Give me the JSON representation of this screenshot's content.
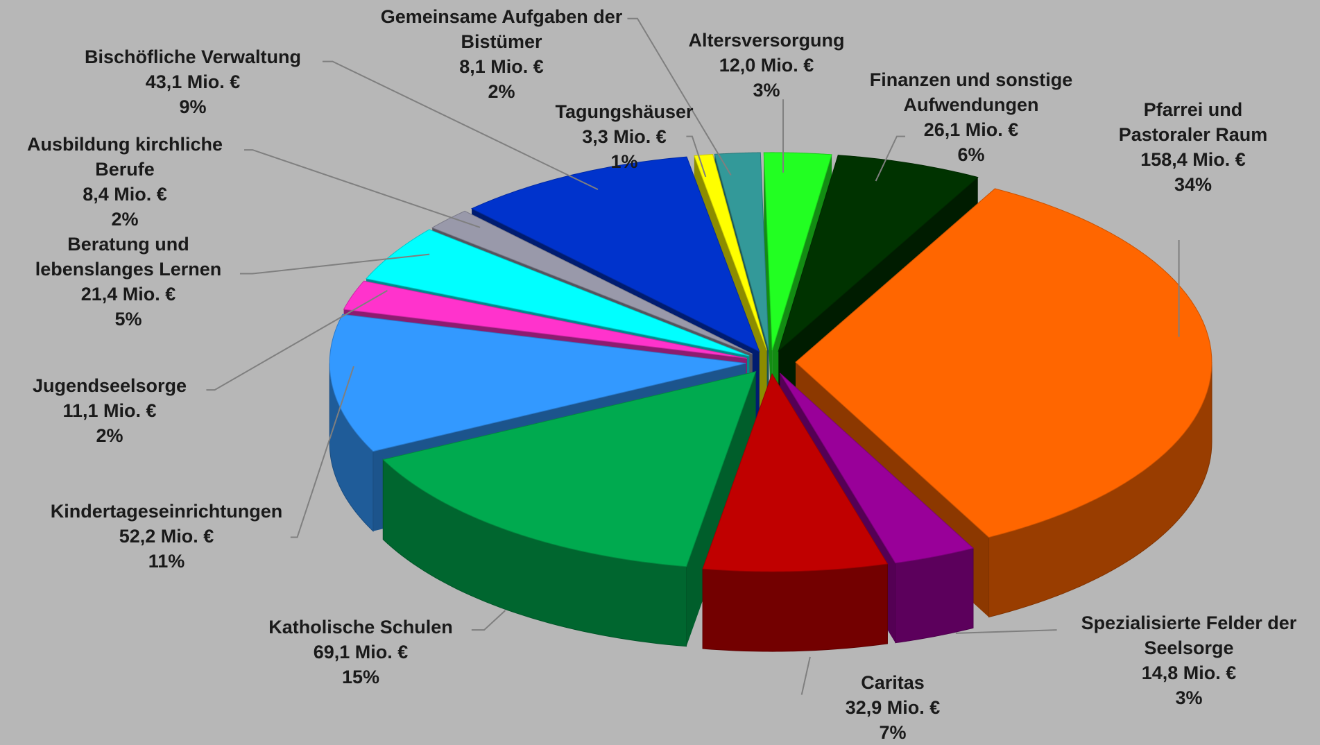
{
  "chart_data": {
    "type": "pie3d",
    "categories": [
      "Altersversorgung",
      "Finanzen und sonstige Aufwendungen",
      "Pfarrei und Pastoraler Raum",
      "Spezialisierte Felder der Seelsorge",
      "Caritas",
      "Katholische Schulen",
      "Kindertageseinrichtungen",
      "Jugendseelsorge",
      "Beratung und lebenslanges Lernen",
      "Ausbildung kirchliche Berufe",
      "Bischöfliche Verwaltung",
      "Tagungshäuser",
      "Gemeinsame Aufgaben der Bistümer"
    ],
    "values": [
      12.0,
      26.1,
      158.4,
      14.8,
      32.9,
      69.1,
      52.2,
      11.1,
      21.4,
      8.4,
      43.1,
      3.3,
      8.1
    ],
    "value_labels": [
      "12,0 Mio. €",
      "26,1 Mio. €",
      "158,4 Mio. €",
      "14,8 Mio. €",
      "32,9 Mio. €",
      "69,1 Mio. €",
      "52,2 Mio. €",
      "11,1 Mio. €",
      "21,4 Mio. €",
      "8,4 Mio. €",
      "43,1 Mio. €",
      "3,3 Mio. €",
      "8,1 Mio. €"
    ],
    "percents": [
      3,
      6,
      34,
      3,
      7,
      15,
      11,
      2,
      5,
      2,
      9,
      1,
      2
    ],
    "percent_labels": [
      "3%",
      "6%",
      "34%",
      "3%",
      "7%",
      "15%",
      "11%",
      "2%",
      "5%",
      "2%",
      "9%",
      "1%",
      "2%"
    ],
    "colors": [
      "#22ff22",
      "#003300",
      "#ff6600",
      "#990099",
      "#c00000",
      "#00aa4f",
      "#3399ff",
      "#ff33cc",
      "#00ffff",
      "#9999aa",
      "#0033cc",
      "#ffff00",
      "#339999"
    ]
  }
}
